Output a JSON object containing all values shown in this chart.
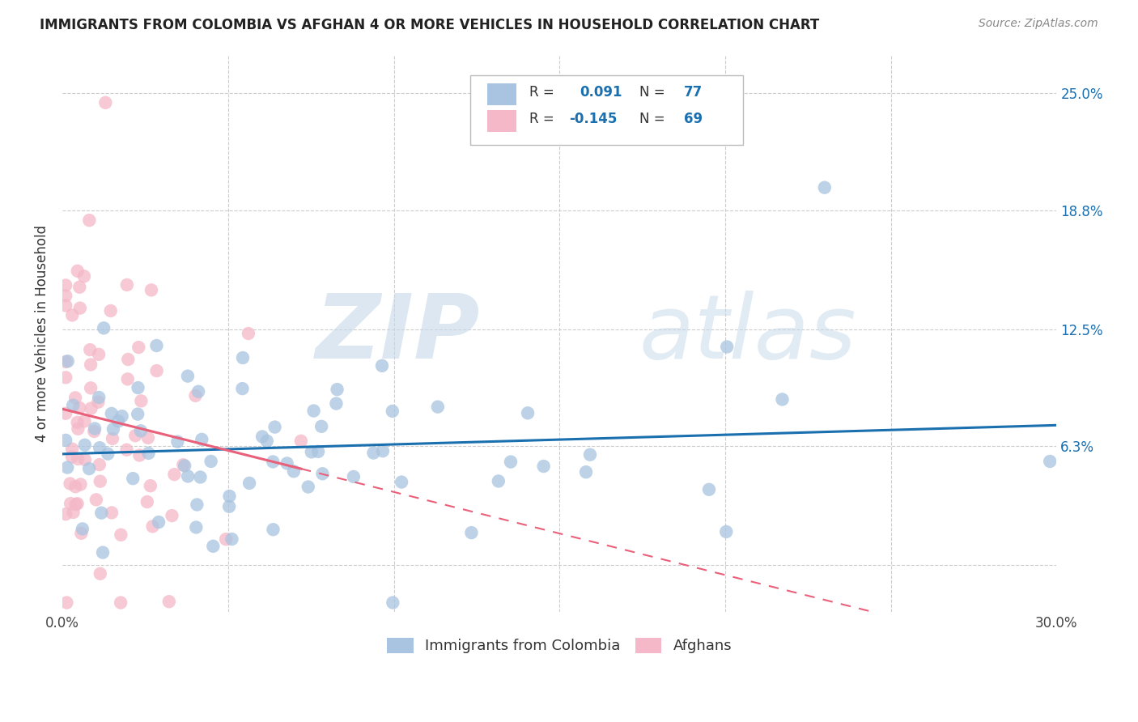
{
  "title": "IMMIGRANTS FROM COLOMBIA VS AFGHAN 4 OR MORE VEHICLES IN HOUSEHOLD CORRELATION CHART",
  "source": "Source: ZipAtlas.com",
  "ylabel": "4 or more Vehicles in Household",
  "xlim": [
    0.0,
    0.3
  ],
  "ylim": [
    -0.025,
    0.27
  ],
  "ytick_labels": [
    "6.3%",
    "12.5%",
    "18.8%",
    "25.0%"
  ],
  "ytick_positions": [
    0.063,
    0.125,
    0.188,
    0.25
  ],
  "colombia_color": "#a8c4e0",
  "afghan_color": "#f4b8c8",
  "colombia_line_color": "#1a6faf",
  "afghan_line_color": "#e8607a",
  "colombia_R": 0.091,
  "colombia_N": 77,
  "afghan_R": -0.145,
  "afghan_N": 69,
  "watermark_zip": "ZIP",
  "watermark_atlas": "atlas",
  "background_color": "#ffffff",
  "grid_color": "#cccccc"
}
